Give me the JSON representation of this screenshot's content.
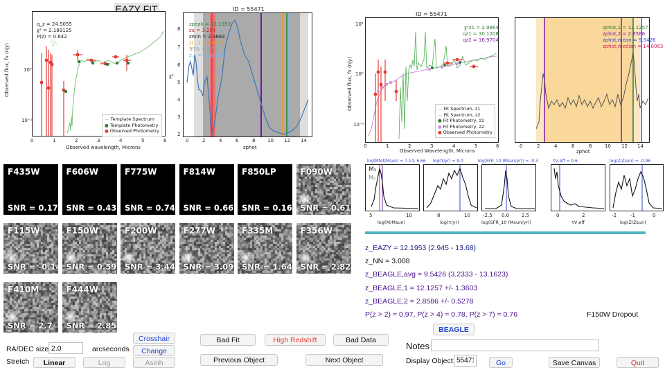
{
  "header": {
    "eazy_fit_label": "EAZY FIT"
  },
  "sed_eazy": {
    "annot_q": "q_z = 24.5055",
    "annot_chi": "χ² = 2.189125",
    "annot_p": "P(z) = 0.642",
    "ylabel": "Observed flux, fν (njy)",
    "xlabel": "Observed wavelength, Microns",
    "xticks": [
      "0",
      "1",
      "2",
      "3",
      "4",
      "5",
      "6"
    ],
    "yticks": [
      "10⁰",
      "10⁻¹"
    ],
    "legend": [
      "Template Spectrum",
      "Template Photometry",
      "Observed Photometry"
    ]
  },
  "chi_plot": {
    "title": "ID = 55471",
    "ylabel": "χ²",
    "xlabel": "zphot",
    "xticks": [
      "0",
      "2",
      "4",
      "6",
      "8",
      "10",
      "12",
      "14"
    ],
    "yticks": [
      "2",
      "3",
      "4",
      "5",
      "6",
      "7",
      "8"
    ],
    "annot": [
      {
        "text": "zpeak = 12.1953",
        "color": "#2e7d32"
      },
      {
        "text": "zа = 3.204",
        "color": "#c62828"
      },
      {
        "text": "zmin = 2.3683",
        "color": "#222222"
      },
      {
        "text": "z(...) = 0.0675",
        "color": "#ef9a1a"
      },
      {
        "text": "95% = 98%",
        "color": "#999999"
      },
      {
        "text": "z... = 12.6563",
        "color": "#64b5f6"
      }
    ]
  },
  "sed_beagle": {
    "title": "ID = 55471",
    "annot": [
      {
        "text": "χ²z1 = 2.9864",
        "color": "#2e7d32"
      },
      {
        "text": "qz1 = 30.1208",
        "color": "#2e7d32"
      },
      {
        "text": "qz2 = 16.9704",
        "color": "#7b1fa2"
      }
    ],
    "ylabel": "Observed flux, fν (njy)",
    "xlabel": "Observed Wavelength, Microns",
    "xticks": [
      "0",
      "1",
      "2",
      "3",
      "4",
      "5",
      "6"
    ],
    "yticks": [
      "10¹",
      "10⁰",
      "10⁻¹"
    ],
    "legend": [
      "Fit Spectrum, z1",
      "Fit Spectrum, z2",
      "Fit Photometry, z1",
      "Fit Photometry, z2",
      "Observed Photometry"
    ]
  },
  "pz_beagle": {
    "annot": [
      {
        "text": "zphot,1 = 12.1257",
        "color": "#2e7d32"
      },
      {
        "text": "zphot,2 = 2.8586",
        "color": "#7b1fa2"
      },
      {
        "text": "zphot,mean = 9.5426",
        "color": "#3344cc"
      },
      {
        "text": "zphot,median = 14.0083",
        "color": "#d81b60"
      }
    ],
    "xlabel": "zphot",
    "xticks": [
      "0",
      "2",
      "4",
      "6",
      "8",
      "10",
      "12",
      "14"
    ]
  },
  "posteriors": [
    {
      "title": "log(Mtot/Msun) = 7.14, 6.66",
      "xlabel": "log(M/Msun)",
      "ticks": [
        "5",
        "10"
      ]
    },
    {
      "title": "log(τ/yr) = 9.0",
      "xlabel": "log(τ/yr)",
      "ticks": [
        "8",
        "10"
      ]
    },
    {
      "title": "log(SFR_10 (Msun/yr)) = -0.3",
      "xlabel": "log(SFR_10 (Msun/yr))",
      "ticks": [
        "-2.5",
        "0.0",
        "2.5"
      ]
    },
    {
      "title": "τV,eff = 0.6",
      "xlabel": "τV,eff",
      "ticks": [
        "0",
        "2"
      ]
    },
    {
      "title": "log(Z/Zsun) = -0.96",
      "xlabel": "log(Z/Zsun)",
      "ticks": [
        "-2",
        "-1",
        "0"
      ]
    }
  ],
  "posterior_labels": {
    "m_label_1": "M₁",
    "m_label_2": "M₂"
  },
  "stamps": [
    {
      "filter": "F435W",
      "snr": "SNR = 0.17",
      "noise": false
    },
    {
      "filter": "F606W",
      "snr": "SNR = 0.43",
      "noise": false
    },
    {
      "filter": "F775W",
      "snr": "SNR = 0.74",
      "noise": false
    },
    {
      "filter": "F814W",
      "snr": "SNR = 0.66",
      "noise": false
    },
    {
      "filter": "F850LP",
      "snr": "SNR = 0.16",
      "noise": false
    },
    {
      "filter": "F090W",
      "snr": "SNR = 0.61",
      "noise": true
    },
    {
      "filter": "F115W",
      "snr": "SNR = -0.14",
      "noise": true
    },
    {
      "filter": "F150W",
      "snr": "SNR = 0.59",
      "noise": true
    },
    {
      "filter": "F200W",
      "snr": "SNR = 3.44",
      "noise": true
    },
    {
      "filter": "F277W",
      "snr": "SNR = 3.09",
      "noise": true
    },
    {
      "filter": "F335M",
      "snr": "SNR = 1.64",
      "noise": true
    },
    {
      "filter": "F356W",
      "snr": "SNR = 2.82",
      "noise": true
    },
    {
      "filter": "F410M",
      "snr": "SNR = 2.7",
      "noise": true
    },
    {
      "filter": "F444W",
      "snr": "SNR = 2.85",
      "noise": true
    }
  ],
  "info": {
    "z_eazy": "z_EAZY = 12.1953 (2.945 - 13.68)",
    "z_nn": "z_NN = 3.008",
    "z_beagle_avg": "z_BEAGLE,avg = 9.5426 (3.2333 - 13.1623)",
    "z_beagle_1": "z_BEAGLE,1 = 12.1257 +/- 1.3603",
    "z_beagle_2": "z_BEAGLE,2 = 2.8586 +/- 0.5278",
    "pz": "P(z > 2) = 0.97, P(z > 4) = 0.78, P(z > 7) = 0.76",
    "dropout": "F150W Dropout",
    "beagle_button": "BEAGLE"
  },
  "controls": {
    "crosshair": "Crosshair",
    "change": "Change",
    "radec_label": "RA/DEC size",
    "radec_value": "2.0",
    "arcseconds": "arcseconds",
    "stretch_label": "Stretch",
    "linear": "Linear",
    "log": "Log",
    "asinh": "Asinh",
    "bad_fit": "Bad Fit",
    "high_redshift": "High Redshift",
    "bad_data": "Bad Data",
    "previous_object": "Previous Object",
    "next_object": "Next Object",
    "notes_label": "Notes",
    "notes_value": "",
    "display_object_label": "Display Object:",
    "display_object_value": "55471",
    "go": "Go",
    "save_canvas": "Save Canvas",
    "quit": "Quit"
  },
  "colors": {
    "accent_blue": "#2244cc",
    "quit_red": "#d32f2f",
    "high_redshift_red": "#e53935",
    "info_purple": "#4a148c",
    "info_blue": "#1a237e",
    "separator_teal": "#4fb3c2"
  }
}
